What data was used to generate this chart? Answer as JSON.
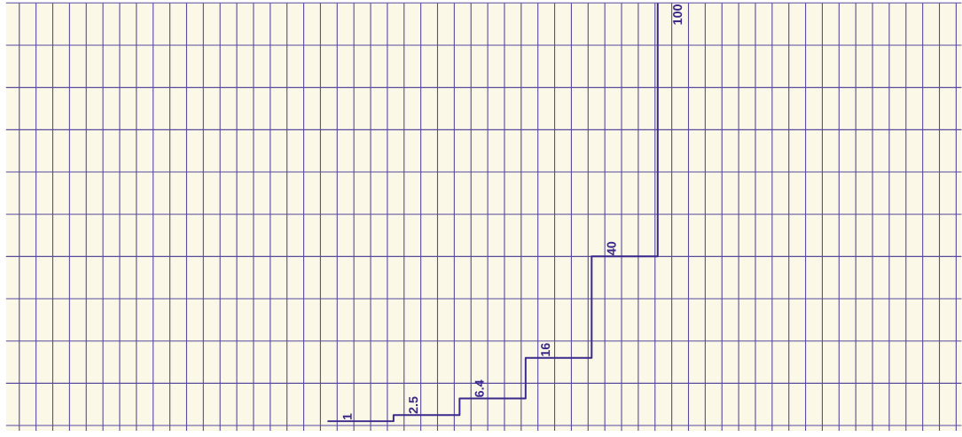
{
  "chart_data": {
    "type": "step",
    "categories": [
      null,
      null,
      null,
      null,
      null,
      null
    ],
    "values": [
      1,
      2.5,
      6.4,
      16,
      40,
      100
    ],
    "data_labels": true,
    "ylim": [
      -1.25,
      100
    ],
    "yticks": [
      {
        "value": 0,
        "label": null
      },
      {
        "value": 10,
        "label": null
      },
      {
        "value": 20,
        "label": null
      },
      {
        "value": 30,
        "label": null
      },
      {
        "value": 40,
        "label": null
      },
      {
        "value": 50,
        "label": null
      },
      {
        "value": 60,
        "label": null
      },
      {
        "value": 70,
        "label": null
      },
      {
        "value": 80,
        "label": null
      },
      {
        "value": 90,
        "label": null
      },
      {
        "value": 100,
        "label": null
      }
    ],
    "color": "#3b2a8c",
    "grid": true
  }
}
